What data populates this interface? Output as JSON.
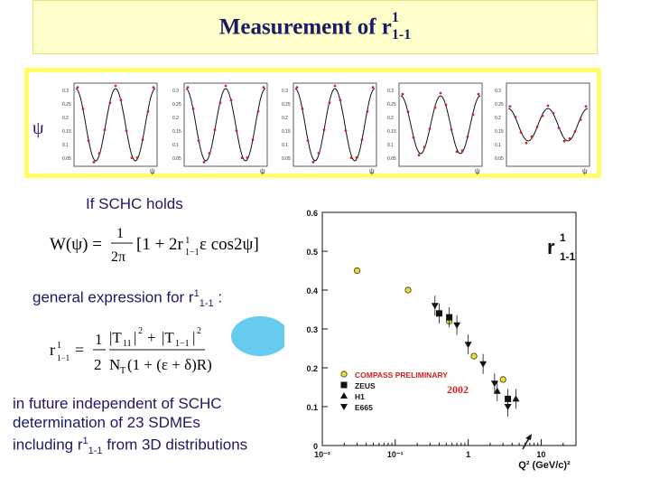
{
  "title": {
    "main": "Measurement of r",
    "sup": "1",
    "sub": "1-1"
  },
  "panels": {
    "axis_label": "ψ",
    "count": 5,
    "yticks": [
      "0.3",
      "0.25",
      "0.2",
      "0.15",
      "0.1",
      "0.05"
    ]
  },
  "left": {
    "schc": "If SCHC holds",
    "formula1": "W(ψ) = (1/2π)[1 + 2r¹₁₋₁ε cos2ψ]",
    "general_prefix": "general expression for  r",
    "general_sup": "1",
    "general_sub": "1-1",
    "general_suffix": " :",
    "formula2": "r¹₁₋₁ = (1/2) (|T₁₁|² + |T₁₋₁|²) / (N_T(1+(ε+δ)R))",
    "future_line1": "in future independent of SCHC",
    "future_line2": "determination of  23 SDMEs",
    "future_line3_prefix": "including r",
    "future_line3_sup": "1",
    "future_line3_sub": "1-1",
    "future_line3_suffix": " from 3D distributions"
  },
  "chart_data": {
    "type": "scatter",
    "title": "r¹₁₋₁",
    "xlabel": "Q² (GeV/c)²",
    "ylabel": "",
    "xscale": "log",
    "xlim": [
      0.01,
      30
    ],
    "ylim": [
      0,
      0.6
    ],
    "yticks": [
      "0",
      "0.1",
      "0.2",
      "0.3",
      "0.4",
      "0.5",
      "0.6"
    ],
    "xticks": [
      "10⁻²",
      "10⁻¹",
      "1",
      "10"
    ],
    "annotation": "2002",
    "series": [
      {
        "name": "COMPASS PRELIMINARY",
        "marker": "circle",
        "color": "#e8e020",
        "x": [
          0.03,
          0.15,
          0.55,
          1.2,
          3.0
        ],
        "y": [
          0.45,
          0.4,
          0.32,
          0.23,
          0.17
        ]
      },
      {
        "name": "ZEUS",
        "marker": "square",
        "color": "#111111",
        "x": [
          0.4,
          0.55,
          3.5
        ],
        "y": [
          0.34,
          0.33,
          0.12
        ]
      },
      {
        "name": "H1",
        "marker": "triangle-up",
        "color": "#111111",
        "x": [
          2.5,
          4.5
        ],
        "y": [
          0.14,
          0.12
        ]
      },
      {
        "name": "E665",
        "marker": "triangle-down",
        "color": "#111111",
        "x": [
          0.35,
          0.7,
          1.0,
          1.6,
          2.3,
          3.5
        ],
        "y": [
          0.36,
          0.31,
          0.26,
          0.21,
          0.16,
          0.1
        ]
      }
    ]
  }
}
